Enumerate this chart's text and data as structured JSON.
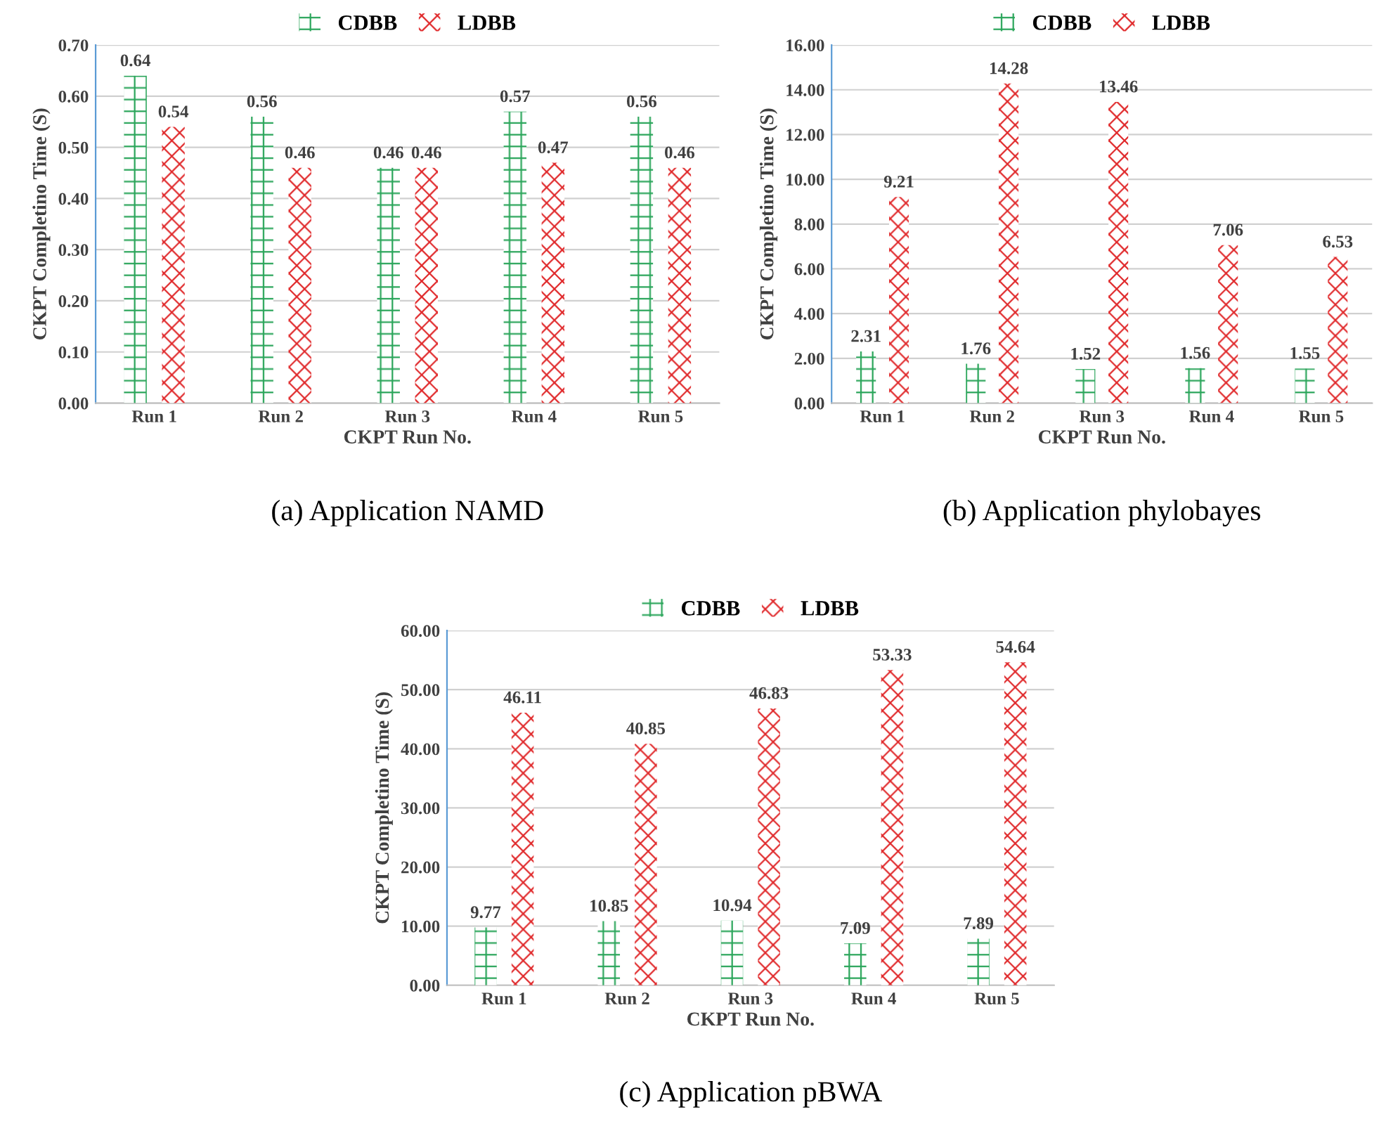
{
  "chart_data": [
    {
      "type": "bar",
      "title": "(a) Application NAMD",
      "xlabel": "CKPT Run No.",
      "ylabel": "CKPT Completino Time (S)",
      "categories": [
        "Run 1",
        "Run 2",
        "Run 3",
        "Run 4",
        "Run 5"
      ],
      "series": [
        {
          "name": "CDBB",
          "color": "#2aa55a",
          "values": [
            0.64,
            0.56,
            0.46,
            0.57,
            0.56
          ]
        },
        {
          "name": "LDBB",
          "color": "#e0282a",
          "values": [
            0.54,
            0.46,
            0.46,
            0.47,
            0.46
          ]
        }
      ],
      "ylim": [
        0,
        0.7
      ],
      "yticks": [
        {
          "value": 0,
          "label": "0.00"
        },
        {
          "value": 0.1,
          "label": "0.10"
        },
        {
          "value": 0.2,
          "label": "0.20"
        },
        {
          "value": 0.3,
          "label": "0.30"
        },
        {
          "value": 0.4,
          "label": "0.40"
        },
        {
          "value": 0.5,
          "label": "0.50"
        },
        {
          "value": 0.6,
          "label": "0.60"
        },
        {
          "value": 0.7,
          "label": "0.70"
        }
      ],
      "grid": "y",
      "legend": "top",
      "data_labels": true
    },
    {
      "type": "bar",
      "title": "(b) Application phylobayes",
      "xlabel": "CKPT Run No.",
      "ylabel": "CKPT Completino Time (S)",
      "categories": [
        "Run 1",
        "Run 2",
        "Run 3",
        "Run 4",
        "Run 5"
      ],
      "series": [
        {
          "name": "CDBB",
          "color": "#2aa55a",
          "values": [
            2.31,
            1.76,
            1.52,
            1.56,
            1.55
          ]
        },
        {
          "name": "LDBB",
          "color": "#e0282a",
          "values": [
            9.21,
            14.28,
            13.46,
            7.06,
            6.53
          ]
        }
      ],
      "ylim": [
        0,
        16
      ],
      "yticks": [
        {
          "value": 0,
          "label": "0.00"
        },
        {
          "value": 2,
          "label": "2.00"
        },
        {
          "value": 4,
          "label": "4.00"
        },
        {
          "value": 6,
          "label": "6.00"
        },
        {
          "value": 8,
          "label": "8.00"
        },
        {
          "value": 10,
          "label": "10.00"
        },
        {
          "value": 12,
          "label": "12.00"
        },
        {
          "value": 14,
          "label": "14.00"
        },
        {
          "value": 16,
          "label": "16.00"
        }
      ],
      "grid": "y",
      "legend": "top",
      "data_labels": true
    },
    {
      "type": "bar",
      "title": "(c) Application pBWA",
      "xlabel": "CKPT Run No.",
      "ylabel": "CKPT Completino Time (S)",
      "categories": [
        "Run 1",
        "Run 2",
        "Run 3",
        "Run 4",
        "Run 5"
      ],
      "series": [
        {
          "name": "CDBB",
          "color": "#2aa55a",
          "values": [
            9.77,
            10.85,
            10.94,
            7.09,
            7.89
          ]
        },
        {
          "name": "LDBB",
          "color": "#e0282a",
          "values": [
            46.11,
            40.85,
            46.83,
            53.33,
            54.64
          ]
        }
      ],
      "ylim": [
        0,
        60
      ],
      "yticks": [
        {
          "value": 0,
          "label": "0.00"
        },
        {
          "value": 10,
          "label": "10.00"
        },
        {
          "value": 20,
          "label": "20.00"
        },
        {
          "value": 30,
          "label": "30.00"
        },
        {
          "value": 40,
          "label": "40.00"
        },
        {
          "value": 50,
          "label": "50.00"
        },
        {
          "value": 60,
          "label": "60.00"
        }
      ],
      "grid": "y",
      "legend": "top",
      "data_labels": true
    }
  ]
}
